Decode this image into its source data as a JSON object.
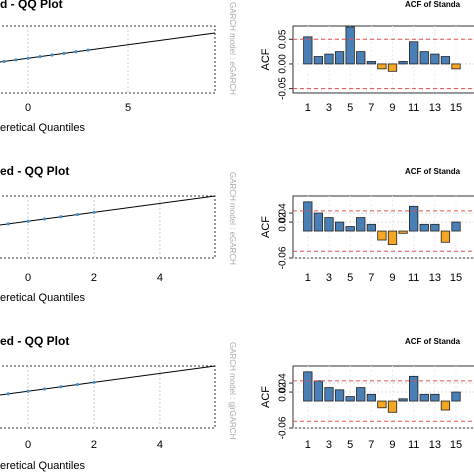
{
  "chart_data": [
    {
      "type": "qq",
      "title": "d - QQ Plot",
      "x_label": "eretical Quantiles",
      "side_label": "GARCH model : eGARCH",
      "xlim": [
        -1.4,
        9.35
      ],
      "xticks": [
        0,
        5
      ],
      "ylim": [
        -4,
        8
      ],
      "grid": true,
      "series": [
        {
          "color": "#000000",
          "x": [
            -1.4,
            9.35
          ],
          "values": [
            1.55,
            6.75
          ]
        },
        {
          "color": "#4a90c8",
          "x": [
            -1.2,
            -0.6,
            0,
            0.6,
            1.2,
            1.8,
            2.4,
            3
          ],
          "values": [
            1.65,
            1.94,
            2.23,
            2.52,
            2.81,
            3.1,
            3.39,
            3.68
          ]
        }
      ]
    },
    {
      "type": "acf",
      "title": "ACF of Standa",
      "y_label": "ACF",
      "x": [
        1,
        2,
        3,
        4,
        5,
        6,
        7,
        8,
        9,
        10,
        11,
        12,
        13,
        14,
        15
      ],
      "values": [
        0.055,
        0.015,
        0.02,
        0.025,
        0.075,
        0.025,
        0.005,
        -0.01,
        -0.015,
        0.005,
        0.045,
        0.025,
        0.02,
        0.015,
        -0.01
      ],
      "xlim": [
        -0.4,
        16.7
      ],
      "xticks": [
        1,
        3,
        5,
        7,
        9,
        11,
        13,
        15
      ],
      "ylim": [
        -0.059,
        0.077
      ],
      "yticks": [
        -0.05,
        {
          "value": 0,
          "label": "0.00"
        },
        0.05
      ],
      "bounds": [
        -0.05,
        0.05
      ],
      "color": "#4a7fb5",
      "negative_color": "#f5a623",
      "bound_color": "#e05050",
      "grid": true
    },
    {
      "type": "qq",
      "title": "ed - QQ Plot",
      "x_label": "eretical Quantiles",
      "side_label": "GARCH model : eGARCH",
      "xlim": [
        -0.85,
        5.67
      ],
      "xticks": [
        0,
        2,
        4
      ],
      "ylim": [
        -4,
        6
      ],
      "grid": true,
      "series": [
        {
          "color": "#000000",
          "x": [
            -0.85,
            5.67
          ],
          "values": [
            1.32,
            6
          ]
        },
        {
          "color": "#4a90c8",
          "x": [
            -0.6,
            0,
            0.5,
            1,
            1.5,
            2
          ],
          "values": [
            1.5,
            1.93,
            2.29,
            2.65,
            3.01,
            3.37
          ]
        }
      ]
    },
    {
      "type": "acf",
      "title": "ACF of Standa",
      "y_label": "ACF",
      "x": [
        1,
        2,
        3,
        4,
        5,
        6,
        7,
        8,
        9,
        10,
        11,
        12,
        13,
        14,
        15
      ],
      "values": [
        0.065,
        0.04,
        0.03,
        0.02,
        0.01,
        0.03,
        0.015,
        -0.02,
        -0.03,
        -0.005,
        0.055,
        0.015,
        0.015,
        -0.025,
        0.02
      ],
      "xlim": [
        -0.4,
        16.7
      ],
      "xticks": [
        1,
        3,
        5,
        7,
        9,
        11,
        13,
        15
      ],
      "ylim": [
        -0.06,
        0.078
      ],
      "yticks": [
        -0.06,
        0.02,
        0.04
      ],
      "bounds": [
        -0.045,
        0.045
      ],
      "color": "#4a7fb5",
      "negative_color": "#f5a623",
      "bound_color": "#e05050",
      "grid": true
    },
    {
      "type": "qq",
      "title": "ed - QQ Plot",
      "x_label": "eretical Quantiles",
      "side_label": "GARCH model : gjrGARCH",
      "xlim": [
        -0.85,
        5.67
      ],
      "xticks": [
        0,
        2,
        4
      ],
      "ylim": [
        -4,
        6
      ],
      "grid": true,
      "series": [
        {
          "color": "#000000",
          "x": [
            -0.85,
            5.67
          ],
          "values": [
            1.32,
            6
          ]
        },
        {
          "color": "#4a90c8",
          "x": [
            -0.6,
            0,
            0.5,
            1,
            1.5,
            2
          ],
          "values": [
            1.5,
            1.93,
            2.29,
            2.65,
            3.01,
            3.37
          ]
        }
      ]
    },
    {
      "type": "acf",
      "title": "ACF of Standa",
      "y_label": "ACF",
      "x": [
        1,
        2,
        3,
        4,
        5,
        6,
        7,
        8,
        9,
        10,
        11,
        12,
        13,
        14,
        15
      ],
      "values": [
        0.065,
        0.045,
        0.03,
        0.025,
        0.01,
        0.03,
        0.015,
        -0.015,
        -0.025,
        0.005,
        0.055,
        0.015,
        0.015,
        -0.02,
        0.02
      ],
      "xlim": [
        -0.4,
        16.7
      ],
      "xticks": [
        1,
        3,
        5,
        7,
        9,
        11,
        13,
        15
      ],
      "ylim": [
        -0.06,
        0.078
      ],
      "yticks": [
        -0.06,
        0.02,
        0.04
      ],
      "bounds": [
        -0.045,
        0.045
      ],
      "color": "#4a7fb5",
      "negative_color": "#f5a623",
      "bound_color": "#e05050",
      "grid": true
    }
  ]
}
